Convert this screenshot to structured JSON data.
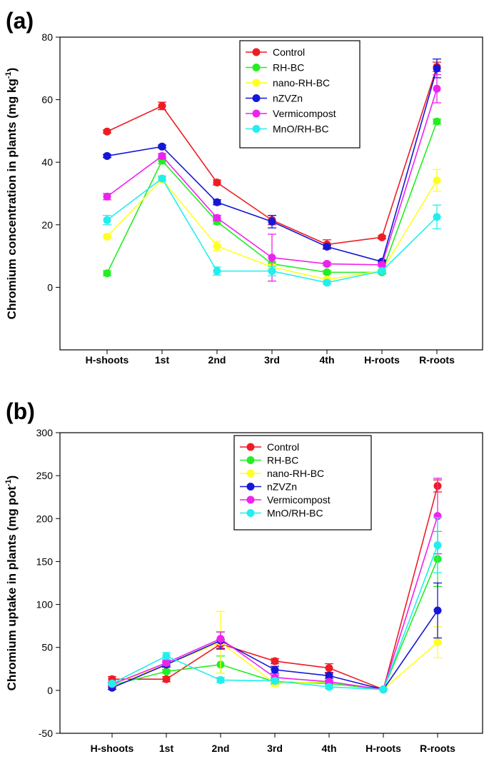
{
  "chart_data": [
    {
      "type": "line",
      "panel_label": "(a)",
      "ylabel": "Chromium concentration in plants (mg kg",
      "yunit_sup": "-1",
      "yunit_close": ")",
      "ylim": [
        -20,
        80
      ],
      "yticks": [
        0,
        20,
        40,
        60,
        80
      ],
      "categories": [
        "H-shoots",
        "1st",
        "2nd",
        "3rd",
        "4th",
        "H-roots",
        "R-roots"
      ],
      "legend_position": "top-center",
      "series": [
        {
          "name": "Control",
          "color": "#ee1c24",
          "values": [
            49.8,
            58.0,
            33.5,
            21.5,
            13.7,
            16.0,
            70.5
          ],
          "errors": [
            0.5,
            1.2,
            0.8,
            1.5,
            1.5,
            0.5,
            1.5
          ]
        },
        {
          "name": "RH-BC",
          "color": "#22ee22",
          "values": [
            4.5,
            40.5,
            21.0,
            7.5,
            4.8,
            4.8,
            53.0
          ],
          "errors": [
            0.8,
            1.0,
            0.8,
            0.8,
            0.5,
            0.5,
            0.8
          ]
        },
        {
          "name": "nano-RH-BC",
          "color": "#ffff22",
          "values": [
            16.2,
            34.5,
            13.2,
            6.5,
            2.5,
            5.3,
            34.2
          ],
          "errors": [
            0.5,
            0.8,
            1.5,
            0.8,
            0.5,
            0.5,
            3.5
          ]
        },
        {
          "name": "nZVZn",
          "color": "#1616d8",
          "values": [
            42.0,
            45.0,
            27.2,
            21.0,
            13.0,
            8.2,
            70.0
          ],
          "errors": [
            0.5,
            0.5,
            0.8,
            2.0,
            0.5,
            0.5,
            3.0
          ]
        },
        {
          "name": "Vermicompost",
          "color": "#ee22ee",
          "values": [
            29.0,
            42.0,
            22.2,
            9.5,
            7.5,
            7.2,
            63.5
          ],
          "errors": [
            1.0,
            0.8,
            0.8,
            7.5,
            0.5,
            0.5,
            4.5
          ]
        },
        {
          "name": "MnO/RH-BC",
          "color": "#22eeee",
          "values": [
            21.5,
            34.8,
            5.2,
            5.2,
            1.5,
            5.2,
            22.5
          ],
          "errors": [
            1.5,
            0.8,
            1.3,
            1.5,
            0.5,
            0.5,
            3.8
          ]
        }
      ]
    },
    {
      "type": "line",
      "panel_label": "(b)",
      "ylabel": "Chromium uptake in plants (mg pot",
      "yunit_sup": "-1",
      "yunit_close": ")",
      "ylim": [
        -50,
        300
      ],
      "yticks": [
        -50,
        0,
        50,
        100,
        150,
        200,
        250,
        300
      ],
      "categories": [
        "H-shoots",
        "1st",
        "2nd",
        "3rd",
        "4th",
        "H-roots",
        "R-roots"
      ],
      "legend_position": "top-center",
      "series": [
        {
          "name": "Control",
          "color": "#ee1c24",
          "values": [
            13,
            13,
            54,
            34,
            26,
            1,
            238
          ],
          "errors": [
            3,
            3,
            5,
            3,
            5,
            1,
            7
          ]
        },
        {
          "name": "RH-BC",
          "color": "#22ee22",
          "values": [
            6,
            22,
            30,
            10,
            8,
            1,
            153
          ],
          "errors": [
            2,
            2,
            10,
            3,
            2,
            1,
            32
          ]
        },
        {
          "name": "nano-RH-BC",
          "color": "#ffff22",
          "values": [
            7,
            30,
            56,
            8,
            10,
            1,
            56
          ],
          "errors": [
            2,
            3,
            36,
            3,
            2,
            1,
            18
          ]
        },
        {
          "name": "nZVZn",
          "color": "#1616d8",
          "values": [
            3,
            30,
            58,
            24,
            17,
            1,
            93
          ],
          "errors": [
            2,
            3,
            10,
            4,
            3,
            1,
            32
          ]
        },
        {
          "name": "Vermicompost",
          "color": "#ee22ee",
          "values": [
            7,
            32,
            60,
            15,
            10,
            1,
            203
          ],
          "errors": [
            2,
            3,
            8,
            3,
            2,
            1,
            44
          ]
        },
        {
          "name": "MnO/RH-BC",
          "color": "#22eeee",
          "values": [
            8,
            40,
            12,
            11,
            4,
            1,
            169
          ],
          "errors": [
            2,
            4,
            3,
            3,
            2,
            1,
            32
          ]
        }
      ]
    }
  ]
}
